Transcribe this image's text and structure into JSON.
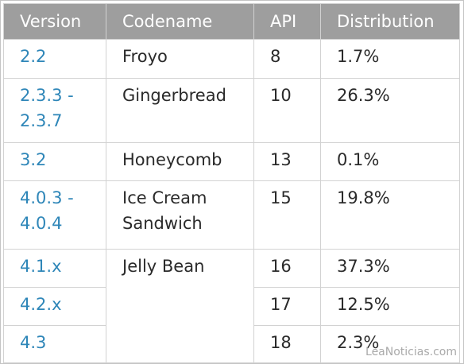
{
  "table": {
    "headers": [
      "Version",
      "Codename",
      "API",
      "Distribution"
    ],
    "rows": [
      {
        "version": [
          "2.2"
        ],
        "codename": [
          "Froyo"
        ],
        "api": "8",
        "distribution": "1.7%"
      },
      {
        "version": [
          "2.3.3 -",
          "2.3.7"
        ],
        "codename": [
          "Gingerbread"
        ],
        "api": "10",
        "distribution": "26.3%"
      },
      {
        "version": [
          "3.2"
        ],
        "codename": [
          "Honeycomb"
        ],
        "api": "13",
        "distribution": "0.1%"
      },
      {
        "version": [
          "4.0.3 -",
          "4.0.4"
        ],
        "codename": [
          "Ice Cream",
          "Sandwich"
        ],
        "api": "15",
        "distribution": "19.8%"
      },
      {
        "version": [
          "4.1.x"
        ],
        "codename": [
          "Jelly Bean"
        ],
        "api": "16",
        "distribution": "37.3%"
      },
      {
        "version": [
          "4.2.x"
        ],
        "api": "17",
        "distribution": "12.5%"
      },
      {
        "version": [
          "4.3"
        ],
        "api": "18",
        "distribution": "2.3%"
      }
    ]
  },
  "watermark": "LeaNoticias.com",
  "colors": {
    "header_bg": "#9e9e9e",
    "version_link": "#2e86b8",
    "text": "#2a2a2a"
  }
}
